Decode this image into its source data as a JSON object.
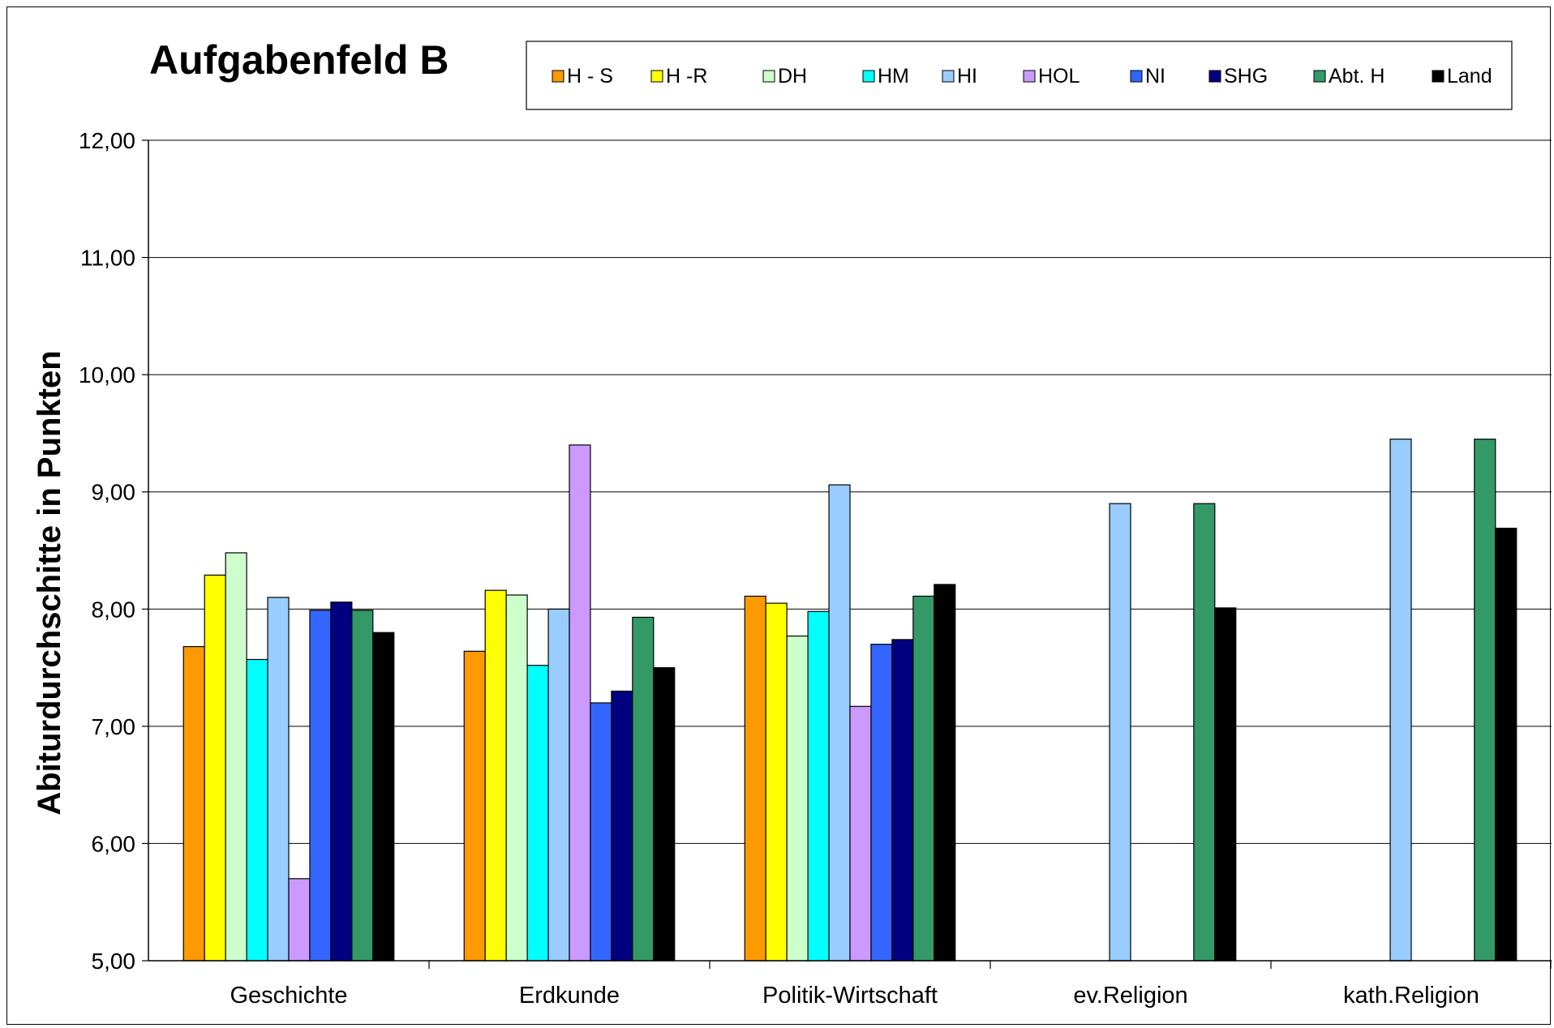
{
  "chart_data": {
    "type": "bar",
    "title": "Aufgabenfeld B",
    "ylabel": "Abiturdurchschitte in Punkten",
    "xlabel": "",
    "ylim": [
      5,
      12
    ],
    "yticks": [
      "5,00",
      "6,00",
      "7,00",
      "8,00",
      "9,00",
      "10,00",
      "11,00",
      "12,00"
    ],
    "grid": "horizontal",
    "legend_position": "top",
    "categories": [
      "Geschichte",
      "Erdkunde",
      "Politik-Wirtschaft",
      "ev.Religion",
      "kath.Religion"
    ],
    "series": [
      {
        "name": "H - S",
        "color": "#ff9900",
        "values": [
          7.68,
          7.64,
          8.11,
          null,
          null
        ]
      },
      {
        "name": "H -R",
        "color": "#ffff00",
        "values": [
          8.29,
          8.16,
          8.05,
          null,
          null
        ]
      },
      {
        "name": "DH",
        "color": "#ccffcc",
        "values": [
          8.48,
          8.12,
          7.77,
          null,
          null
        ]
      },
      {
        "name": "HM",
        "color": "#00ffff",
        "values": [
          7.57,
          7.52,
          7.98,
          null,
          null
        ]
      },
      {
        "name": "HI",
        "color": "#99ccff",
        "values": [
          8.1,
          8.0,
          9.06,
          8.9,
          9.45
        ]
      },
      {
        "name": "HOL",
        "color": "#cc99ff",
        "values": [
          5.7,
          9.4,
          7.17,
          null,
          null
        ]
      },
      {
        "name": "NI",
        "color": "#3366ff",
        "values": [
          7.99,
          7.2,
          7.7,
          null,
          null
        ]
      },
      {
        "name": "SHG",
        "color": "#000080",
        "values": [
          8.06,
          7.3,
          7.74,
          null,
          null
        ]
      },
      {
        "name": "Abt. H",
        "color": "#339966",
        "values": [
          7.99,
          7.93,
          8.11,
          8.9,
          9.45
        ]
      },
      {
        "name": "Land",
        "color": "#000000",
        "values": [
          7.8,
          7.5,
          8.21,
          8.01,
          8.69
        ]
      }
    ]
  }
}
